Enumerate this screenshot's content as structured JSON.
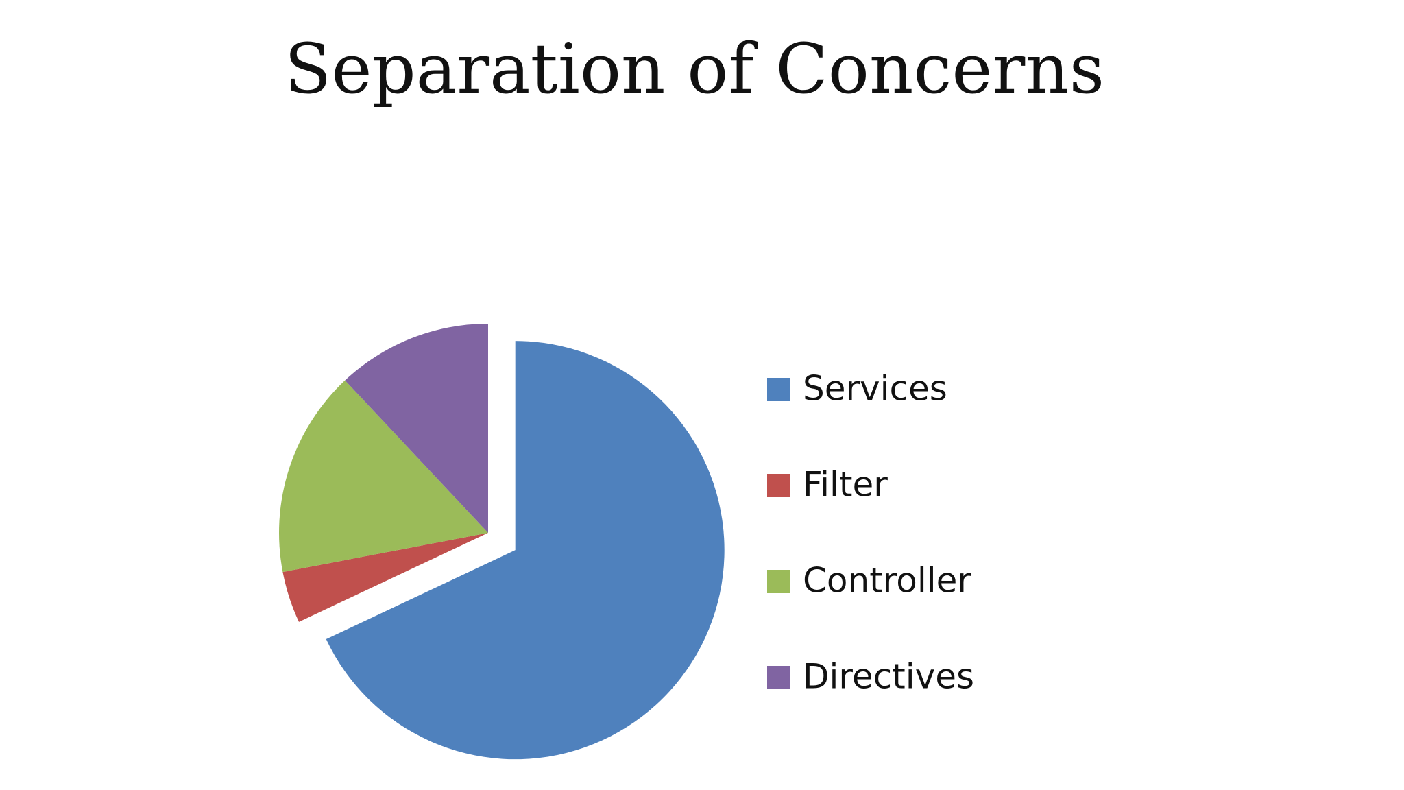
{
  "chart_data": {
    "type": "pie",
    "title": "Separation of Concerns",
    "categories": [
      "Services",
      "Filter",
      "Controller",
      "Directives"
    ],
    "values": [
      68,
      4,
      16,
      12
    ],
    "colors": [
      "#4f81bd",
      "#c0504d",
      "#9bbb59",
      "#8064a2"
    ],
    "exploded": [
      true,
      false,
      false,
      false
    ],
    "legend": "right"
  }
}
